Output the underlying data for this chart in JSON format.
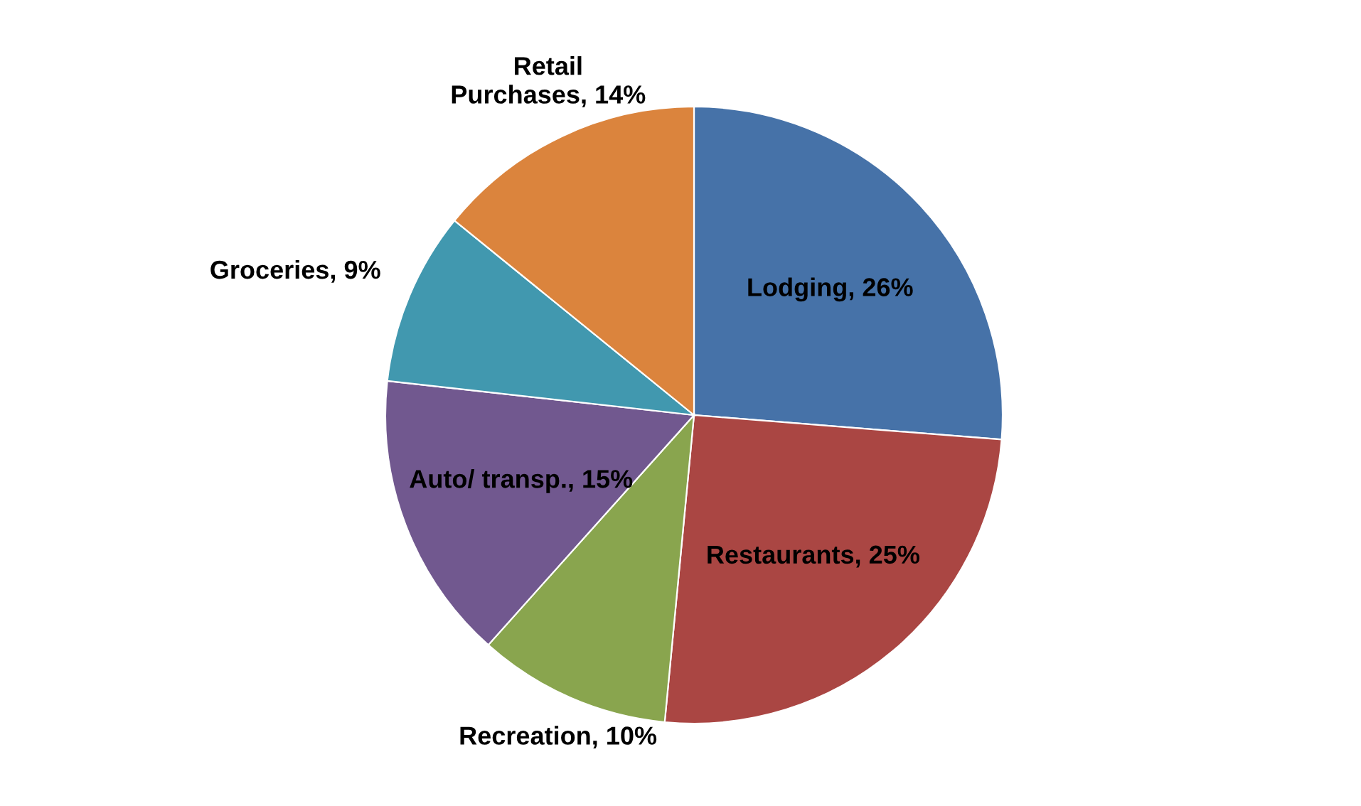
{
  "chart_data": {
    "type": "pie",
    "categories": [
      "Lodging",
      "Restaurants",
      "Recreation",
      "Auto/ transp.",
      "Groceries",
      "Retail Purchases"
    ],
    "values": [
      26,
      25,
      10,
      15,
      9,
      14
    ],
    "colors": [
      "#4672a8",
      "#aa4643",
      "#89a54e",
      "#71588f",
      "#4198af",
      "#db843d"
    ],
    "value_labels": [
      "26%",
      "25%",
      "10%",
      "15%",
      "9%",
      "14%"
    ]
  }
}
